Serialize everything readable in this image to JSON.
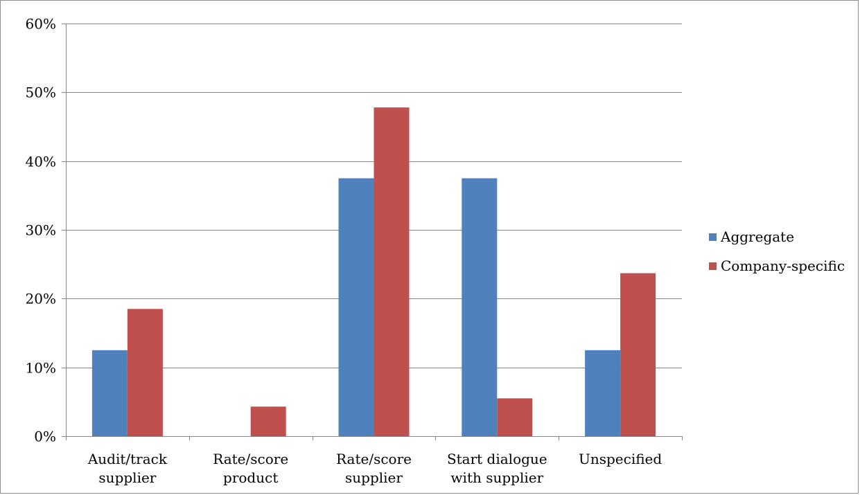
{
  "chart_data": {
    "type": "bar",
    "categories": [
      [
        "Audit/track",
        "supplier"
      ],
      [
        "Rate/score",
        "product"
      ],
      [
        "Rate/score",
        "supplier"
      ],
      [
        "Start dialogue",
        "with supplier"
      ],
      [
        "Unspecified"
      ]
    ],
    "series": [
      {
        "name": "Aggregate",
        "color": "#4f81bd",
        "values": [
          0.125,
          0.0,
          0.375,
          0.375,
          0.125
        ]
      },
      {
        "name": "Company-specific",
        "color": "#c0504d",
        "values": [
          0.185,
          0.043,
          0.478,
          0.055,
          0.237
        ]
      }
    ],
    "ylim": [
      0,
      0.6
    ],
    "yticks": [
      0,
      0.1,
      0.2,
      0.3,
      0.4,
      0.5,
      0.6
    ],
    "ytick_labels": [
      "0%",
      "10%",
      "20%",
      "30%",
      "40%",
      "50%",
      "60%"
    ],
    "grid": true,
    "legend_position": "right",
    "title": "",
    "xlabel": "",
    "ylabel": ""
  }
}
